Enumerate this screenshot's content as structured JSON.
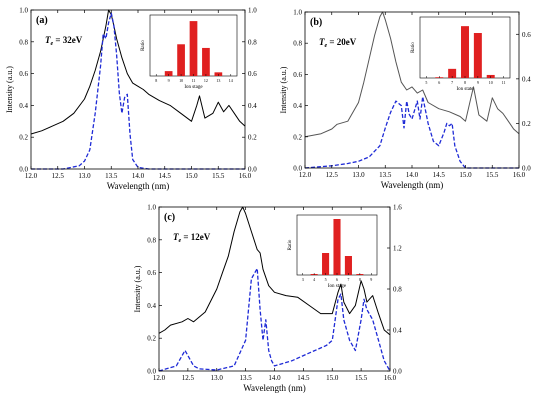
{
  "chart_data": [
    {
      "type": "line",
      "panel_label": "(a)",
      "temperature_label": "Te = 32eV",
      "temp_prefix": "T",
      "temp_sub": "e",
      "temp_value": " = 32eV",
      "xlabel": "Wavelength (nm)",
      "ylabel": "Intensity (a.u.)",
      "xlim": [
        12.0,
        16.0
      ],
      "ylim_left": [
        0.0,
        1.0
      ],
      "ylim_right": [
        0.0,
        1.0
      ],
      "x_ticks": [
        "12.0",
        "12.5",
        "13.0",
        "13.5",
        "14.0",
        "14.5",
        "15.0",
        "15.5",
        "16.0"
      ],
      "y_ticks_left": [
        "0.0",
        "0.2",
        "0.4",
        "0.6",
        "0.8",
        "1.0"
      ],
      "y_ticks_right": [
        "0.0",
        "0.2",
        "0.4",
        "0.6",
        "0.8",
        "1.0"
      ],
      "series": [
        {
          "style": "solid",
          "color": "#000000",
          "axis": "left",
          "x": [
            12.0,
            12.2,
            12.4,
            12.6,
            12.8,
            13.0,
            13.1,
            13.2,
            13.3,
            13.4,
            13.45,
            13.5,
            13.55,
            13.6,
            13.7,
            13.8,
            13.9,
            14.0,
            14.1,
            14.2,
            14.4,
            14.6,
            14.8,
            15.0,
            15.1,
            15.15,
            15.25,
            15.4,
            15.5,
            15.6,
            15.7,
            15.8,
            15.9,
            16.0
          ],
          "y": [
            0.22,
            0.24,
            0.27,
            0.3,
            0.35,
            0.44,
            0.52,
            0.62,
            0.74,
            0.9,
            1.0,
            0.97,
            0.9,
            0.82,
            0.7,
            0.6,
            0.54,
            0.52,
            0.5,
            0.47,
            0.43,
            0.4,
            0.35,
            0.3,
            0.4,
            0.46,
            0.32,
            0.35,
            0.42,
            0.36,
            0.4,
            0.35,
            0.3,
            0.27
          ]
        },
        {
          "style": "dashed",
          "color": "#1f2bd6",
          "axis": "right",
          "x": [
            12.0,
            12.6,
            12.9,
            13.0,
            13.1,
            13.2,
            13.3,
            13.35,
            13.4,
            13.45,
            13.5,
            13.55,
            13.6,
            13.65,
            13.7,
            13.75,
            13.8,
            13.85,
            13.9,
            14.0,
            14.2,
            16.0
          ],
          "y": [
            0.0,
            0.0,
            0.02,
            0.05,
            0.12,
            0.35,
            0.65,
            0.85,
            0.82,
            0.92,
            0.98,
            0.9,
            0.72,
            0.48,
            0.35,
            0.45,
            0.47,
            0.22,
            0.06,
            0.01,
            0.0,
            0.0
          ]
        }
      ],
      "inset": {
        "type": "bar",
        "xlabel": "Ion stage",
        "ylabel": "Ratio",
        "categories": [
          "8",
          "9",
          "10",
          "11",
          "12",
          "13",
          "14"
        ],
        "values": [
          0,
          0.04,
          0.26,
          0.45,
          0.23,
          0.03,
          0
        ],
        "ylim": [
          0,
          0.5
        ],
        "bar_color": "#e02020"
      }
    },
    {
      "type": "line",
      "panel_label": "(b)",
      "temperature_label": "Te = 20eV",
      "temp_prefix": "T",
      "temp_sub": "e",
      "temp_value": " = 20eV",
      "xlabel": "Wavelength (nm)",
      "ylabel": "Intensity (a.u.)",
      "xlim": [
        12.0,
        16.0
      ],
      "ylim_left": [
        0.0,
        1.0
      ],
      "ylim_right": [
        0.0,
        0.7
      ],
      "x_ticks": [
        "12.0",
        "12.5",
        "13.0",
        "13.5",
        "14.0",
        "14.5",
        "15.0",
        "15.5",
        "16.0"
      ],
      "y_ticks_left": [
        "0.0",
        "0.2",
        "0.4",
        "0.6",
        "0.8",
        "1.0"
      ],
      "y_ticks_right": [
        "0.0",
        "0.2",
        "0.4",
        "0.6"
      ],
      "series": [
        {
          "style": "solid",
          "color": "#555555",
          "axis": "left",
          "x": [
            12.0,
            12.3,
            12.5,
            12.6,
            12.8,
            13.0,
            13.1,
            13.2,
            13.3,
            13.4,
            13.45,
            13.5,
            13.6,
            13.7,
            13.8,
            13.9,
            14.0,
            14.1,
            14.2,
            14.3,
            14.5,
            14.7,
            14.9,
            15.0,
            15.1,
            15.15,
            15.25,
            15.4,
            15.5,
            15.6,
            15.7,
            15.8,
            15.9,
            16.0
          ],
          "y": [
            0.2,
            0.22,
            0.25,
            0.28,
            0.3,
            0.42,
            0.55,
            0.7,
            0.85,
            0.97,
            1.0,
            0.95,
            0.83,
            0.68,
            0.55,
            0.5,
            0.52,
            0.48,
            0.5,
            0.42,
            0.38,
            0.36,
            0.33,
            0.3,
            0.45,
            0.52,
            0.34,
            0.3,
            0.45,
            0.38,
            0.35,
            0.3,
            0.25,
            0.22
          ]
        },
        {
          "style": "dashed",
          "color": "#1f2bd6",
          "axis": "right",
          "x": [
            12.0,
            12.5,
            12.8,
            13.0,
            13.2,
            13.4,
            13.5,
            13.6,
            13.7,
            13.8,
            13.85,
            13.9,
            13.95,
            14.0,
            14.1,
            14.15,
            14.2,
            14.3,
            14.4,
            14.5,
            14.6,
            14.65,
            14.7,
            14.75,
            14.8,
            14.9,
            15.0,
            16.0
          ],
          "y": [
            0.0,
            0.01,
            0.02,
            0.03,
            0.05,
            0.1,
            0.18,
            0.25,
            0.3,
            0.28,
            0.18,
            0.3,
            0.24,
            0.22,
            0.3,
            0.22,
            0.32,
            0.2,
            0.12,
            0.1,
            0.16,
            0.2,
            0.19,
            0.2,
            0.1,
            0.03,
            0.0,
            0.0
          ]
        }
      ],
      "inset": {
        "type": "bar",
        "xlabel": "Ion state",
        "ylabel": "Ratio",
        "categories": [
          "5",
          "6",
          "7",
          "8",
          "9",
          "10",
          "11"
        ],
        "values": [
          0,
          0.01,
          0.12,
          0.68,
          0.59,
          0.04,
          0
        ],
        "ylim": [
          0,
          0.8
        ],
        "bar_color": "#e02020"
      }
    },
    {
      "type": "line",
      "panel_label": "(c)",
      "temperature_label": "Te = 12eV",
      "temp_prefix": "T",
      "temp_sub": "e",
      "temp_value": " = 12eV",
      "xlabel": "Wavelength (nm)",
      "ylabel": "Intensity (a.u.)",
      "xlim": [
        12.0,
        16.0
      ],
      "ylim_left": [
        0.0,
        1.0
      ],
      "ylim_right": [
        0.0,
        1.6
      ],
      "x_ticks": [
        "12.0",
        "12.5",
        "13.0",
        "13.5",
        "14.0",
        "14.5",
        "15.0",
        "15.5",
        "16.0"
      ],
      "y_ticks_left": [
        "0.0",
        "0.2",
        "0.4",
        "0.6",
        "0.8",
        "1.0"
      ],
      "y_ticks_right": [
        "0.0",
        "0.4",
        "0.8",
        "1.2",
        "1.6"
      ],
      "series": [
        {
          "style": "solid",
          "color": "#000000",
          "axis": "left",
          "x": [
            12.0,
            12.1,
            12.2,
            12.4,
            12.5,
            12.6,
            12.8,
            13.0,
            13.1,
            13.2,
            13.3,
            13.4,
            13.45,
            13.5,
            13.6,
            13.7,
            13.75,
            13.8,
            13.9,
            14.0,
            14.2,
            14.4,
            14.6,
            14.8,
            15.0,
            15.1,
            15.15,
            15.2,
            15.3,
            15.4,
            15.5,
            15.55,
            15.6,
            15.7,
            15.8,
            15.9,
            16.0
          ],
          "y": [
            0.23,
            0.25,
            0.28,
            0.3,
            0.32,
            0.3,
            0.36,
            0.5,
            0.6,
            0.7,
            0.85,
            0.97,
            1.0,
            0.96,
            0.85,
            0.74,
            0.72,
            0.62,
            0.52,
            0.48,
            0.46,
            0.45,
            0.4,
            0.35,
            0.35,
            0.48,
            0.53,
            0.42,
            0.35,
            0.4,
            0.55,
            0.5,
            0.42,
            0.46,
            0.35,
            0.25,
            0.22
          ]
        },
        {
          "style": "dashed",
          "color": "#1f2bd6",
          "axis": "right",
          "x": [
            12.0,
            12.3,
            12.45,
            12.5,
            12.6,
            12.7,
            13.0,
            13.3,
            13.5,
            13.6,
            13.65,
            13.7,
            13.75,
            13.8,
            13.85,
            13.9,
            13.95,
            14.0,
            14.3,
            14.5,
            14.7,
            14.9,
            15.0,
            15.1,
            15.15,
            15.2,
            15.3,
            15.4,
            15.5,
            15.55,
            15.6,
            15.7,
            15.8,
            15.9,
            16.0
          ],
          "y": [
            0.0,
            0.05,
            0.2,
            0.15,
            0.05,
            0.02,
            0.01,
            0.05,
            0.3,
            0.9,
            0.95,
            1.0,
            0.6,
            0.3,
            0.5,
            0.2,
            0.1,
            0.05,
            0.1,
            0.15,
            0.2,
            0.25,
            0.3,
            0.7,
            0.75,
            0.5,
            0.3,
            0.2,
            0.5,
            0.7,
            0.6,
            0.5,
            0.3,
            0.1,
            0.0
          ]
        }
      ],
      "inset": {
        "type": "bar",
        "xlabel": "Ion stage",
        "ylabel": "Ratio",
        "categories": [
          "3",
          "4",
          "5",
          "6",
          "7",
          "8",
          "9"
        ],
        "values": [
          0,
          0.01,
          0.22,
          0.56,
          0.19,
          0.01,
          0
        ],
        "ylim": [
          0,
          0.6
        ],
        "bar_color": "#e02020"
      }
    }
  ]
}
